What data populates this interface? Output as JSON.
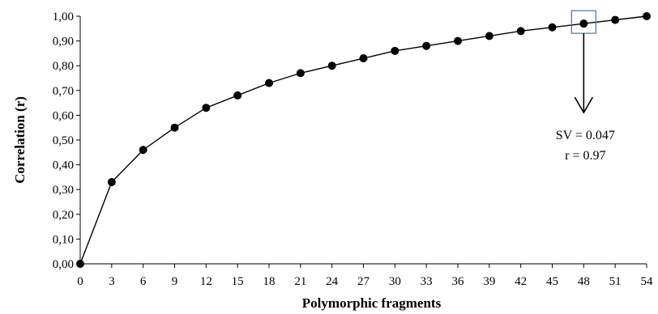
{
  "chart_data": {
    "type": "line",
    "title": "",
    "xlabel": "Polymorphic fragments",
    "ylabel": "Correlation (r)",
    "xlim": [
      0,
      54
    ],
    "ylim": [
      0,
      1
    ],
    "x_ticks": [
      "0",
      "3",
      "6",
      "9",
      "12",
      "15",
      "18",
      "21",
      "24",
      "27",
      "30",
      "33",
      "36",
      "39",
      "42",
      "45",
      "48",
      "51",
      "54"
    ],
    "y_ticks": [
      "0,00",
      "0,10",
      "0,20",
      "0,30",
      "0,40",
      "0,50",
      "0,60",
      "0,70",
      "0,80",
      "0,90",
      "1,00"
    ],
    "grid": false,
    "legend": "none",
    "series": [
      {
        "x": [
          0,
          3,
          6,
          9,
          12,
          15,
          18,
          21,
          24,
          27,
          30,
          33,
          36,
          39,
          42,
          45,
          48,
          51,
          54
        ],
        "y": [
          0.0,
          0.33,
          0.46,
          0.55,
          0.63,
          0.68,
          0.73,
          0.77,
          0.8,
          0.83,
          0.86,
          0.88,
          0.9,
          0.92,
          0.94,
          0.955,
          0.97,
          0.985,
          1.0
        ],
        "color": "#000000"
      }
    ],
    "annotation": {
      "x": 48,
      "y": 0.97,
      "line1": "SV = 0.047",
      "line2": "r = 0.97",
      "box_color": "#4a6fa5"
    }
  }
}
